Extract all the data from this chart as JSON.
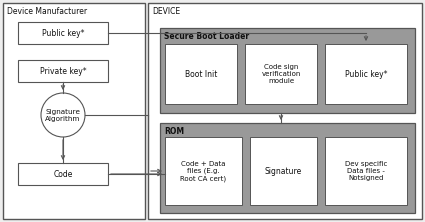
{
  "bg_color": "#eeeeee",
  "white": "#ffffff",
  "dark_gray": "#999999",
  "black": "#111111",
  "border_color": "#555555",
  "left_panel_label": "Device Manufacturer",
  "right_panel_label": "DEVICE",
  "public_key_left": "Public key*",
  "private_key": "Private key*",
  "sig_algo": "Signature\nAlgorithm",
  "code_label": "Code",
  "sbl_label": "Secure Boot Loader",
  "boot_init": "Boot Init",
  "code_sign": "Code sign\nverification\nmodule",
  "public_key_right": "Public key*",
  "rom_label": "ROM",
  "code_data": "Code + Data\nfiles (E.g.\nRoot CA cert)",
  "signature": "Signature",
  "dev_specific": "Dev specific\nData files -\nNotsigned"
}
